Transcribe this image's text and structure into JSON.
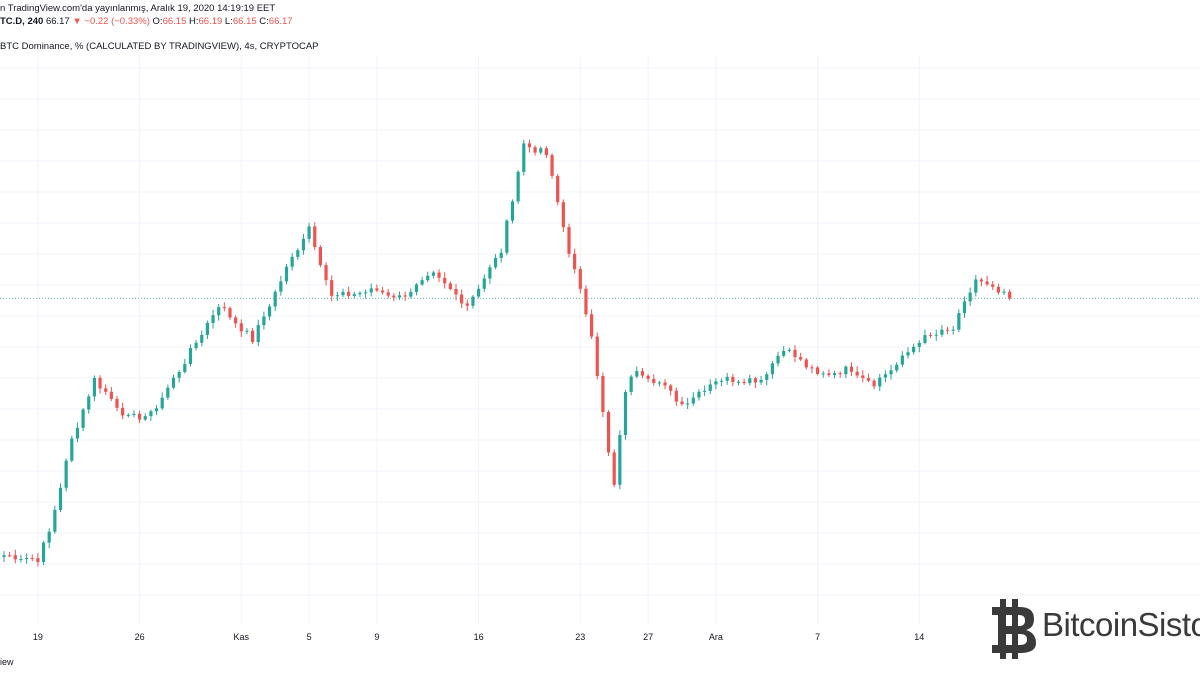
{
  "header": {
    "published": "n TradingView.com'da yayınlanmış, Aralık 19, 2020 14:19:19 EET",
    "symbol": "TC.D, 240",
    "last": "66.17",
    "change_arrow": "▼",
    "change": "−0.22 (−0.33%)",
    "o_label": "O:",
    "o_val": "66.15",
    "h_label": "H:",
    "h_val": "66.19",
    "l_label": "L:",
    "l_val": "66.15",
    "c_label": "C:",
    "c_val": "66.17",
    "series_title": "BTC Dominance, % (CALCULATED BY TRADINGVIEW), 4s, CRYPTOCAP"
  },
  "footer": {
    "text": "iew"
  },
  "watermark": {
    "text": "BitcoinSisto",
    "logo_icon": "bitcoin-b-logo"
  },
  "colors": {
    "up": "#26a69a",
    "down": "#ef5350",
    "grid": "#f0f3fa",
    "price_line": "#26a69a"
  },
  "chart_data": {
    "type": "candlestick",
    "x_tick_labels": [
      "19",
      "26",
      "Kas",
      "5",
      "9",
      "16",
      "23",
      "27",
      "Ara",
      "7",
      "14"
    ],
    "x_tick_index": [
      6,
      24,
      42,
      54,
      66,
      84,
      102,
      114,
      126,
      144,
      162
    ],
    "y_min": 57,
    "y_max": 73,
    "current_price": 66.17,
    "anchors": [
      [
        0,
        58.96
      ],
      [
        6,
        58.86
      ],
      [
        8,
        59.6
      ],
      [
        12,
        62.2
      ],
      [
        16,
        63.9
      ],
      [
        22,
        62.8
      ],
      [
        26,
        62.9
      ],
      [
        32,
        64.4
      ],
      [
        38,
        66.0
      ],
      [
        44,
        65.0
      ],
      [
        50,
        67.0
      ],
      [
        54,
        68.2
      ],
      [
        58,
        66.2
      ],
      [
        62,
        66.3
      ],
      [
        66,
        66.4
      ],
      [
        70,
        66.2
      ],
      [
        76,
        66.8
      ],
      [
        82,
        66.0
      ],
      [
        88,
        67.5
      ],
      [
        92,
        70.5
      ],
      [
        96,
        70.2
      ],
      [
        100,
        67.5
      ],
      [
        104,
        65.2
      ],
      [
        107,
        61.8
      ],
      [
        108,
        60.9
      ],
      [
        110,
        63.6
      ],
      [
        112,
        64.2
      ],
      [
        116,
        63.8
      ],
      [
        120,
        63.2
      ],
      [
        126,
        63.9
      ],
      [
        134,
        63.9
      ],
      [
        138,
        64.8
      ],
      [
        144,
        64.0
      ],
      [
        150,
        64.2
      ],
      [
        154,
        63.8
      ],
      [
        158,
        64.3
      ],
      [
        162,
        65.0
      ],
      [
        168,
        65.3
      ],
      [
        172,
        66.7
      ],
      [
        175,
        66.4
      ],
      [
        178,
        66.17
      ]
    ]
  }
}
